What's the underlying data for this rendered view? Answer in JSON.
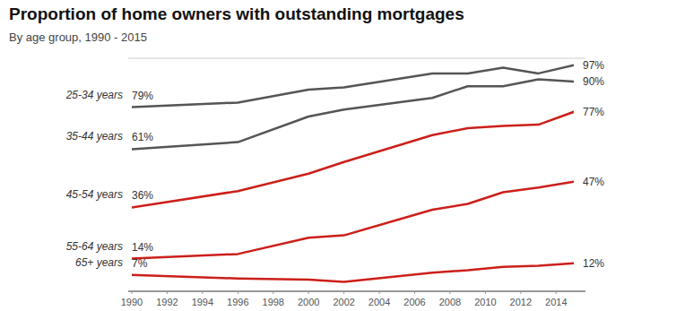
{
  "chart_data": {
    "type": "line",
    "title": "Proportion of home owners with outstanding mortgages",
    "subtitle": "By age group, 1990 - 2015",
    "x": [
      1990,
      1996,
      2000,
      2002,
      2007,
      2009,
      2011,
      2013,
      2015
    ],
    "xlim": [
      1990,
      2015
    ],
    "xticks": [
      1990,
      1992,
      1994,
      1996,
      1998,
      2000,
      2002,
      2004,
      2006,
      2008,
      2010,
      2012,
      2014
    ],
    "ylim": [
      0,
      100
    ],
    "yticks": [
      0,
      100
    ],
    "grid": true,
    "tick_labels": "x",
    "data_labels": true,
    "series": [
      {
        "name": "25-34 years",
        "color": "#555555",
        "values": [
          79,
          81,
          86.5,
          87.5,
          93.5,
          93.5,
          96,
          93.5,
          97
        ],
        "value_labels": [
          "79%",
          null,
          null,
          null,
          null,
          null,
          null,
          null,
          "97%"
        ]
      },
      {
        "name": "35-44 years",
        "color": "#555555",
        "values": [
          61,
          64,
          75,
          78,
          83,
          88,
          88,
          91,
          90
        ],
        "value_labels": [
          "61%",
          null,
          null,
          null,
          null,
          null,
          null,
          null,
          "90%"
        ]
      },
      {
        "name": "45-54 years",
        "color": "#cc1f1a",
        "values": [
          36,
          43,
          50.5,
          55.5,
          67,
          70,
          71,
          71.5,
          77
        ],
        "value_labels": [
          "36%",
          null,
          null,
          null,
          null,
          null,
          null,
          null,
          "77%"
        ]
      },
      {
        "name": "55-64 years",
        "color": "#cc1f1a",
        "values": [
          14,
          16,
          23,
          24,
          35,
          37.5,
          42.5,
          44.5,
          47
        ],
        "value_labels": [
          "14%",
          null,
          null,
          null,
          null,
          null,
          null,
          null,
          "47%"
        ]
      },
      {
        "name": "65+ years",
        "color": "#cc1f1a",
        "values": [
          7,
          5.5,
          5,
          4,
          8,
          9,
          10.5,
          11,
          12
        ],
        "value_labels": [
          "7%",
          null,
          null,
          null,
          null,
          null,
          null,
          null,
          "12%"
        ]
      }
    ]
  }
}
